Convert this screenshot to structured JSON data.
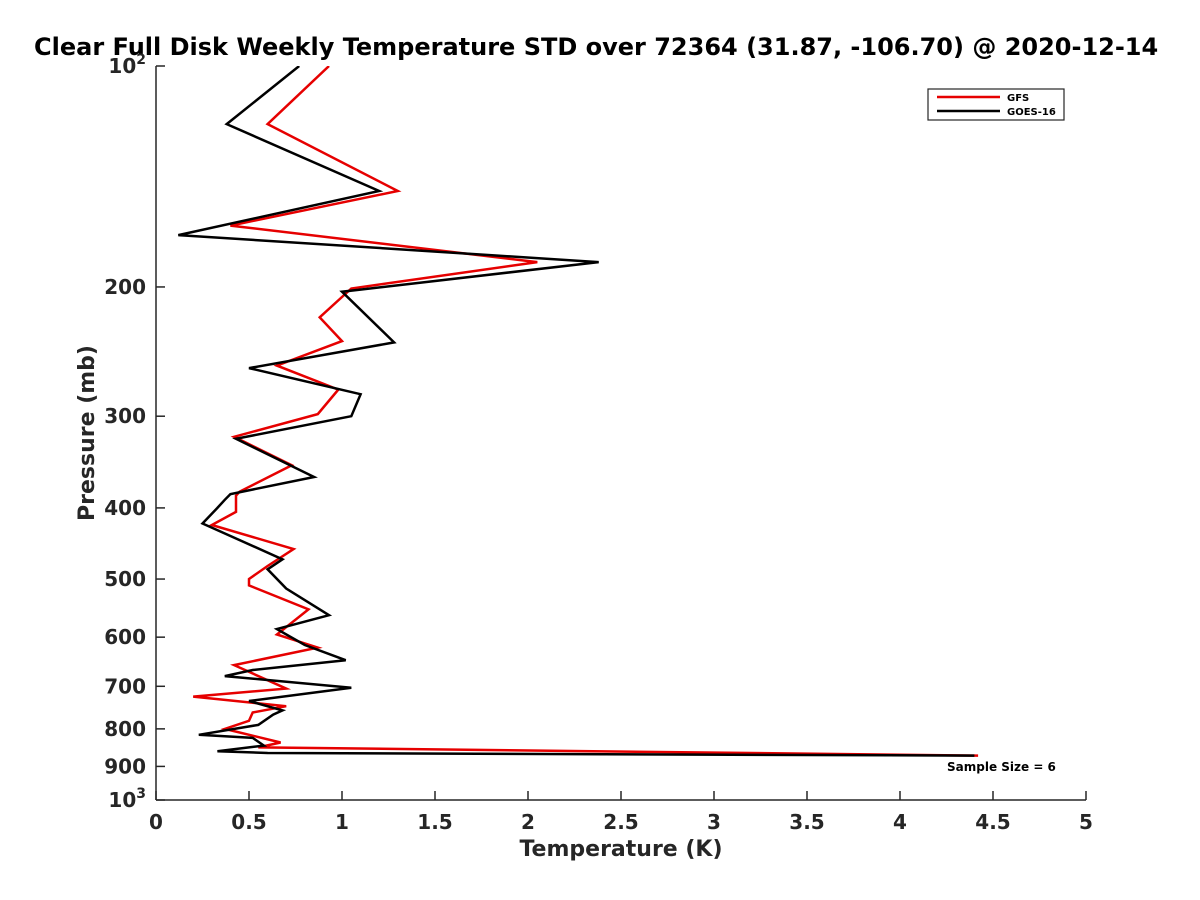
{
  "chart_data": {
    "type": "line",
    "title": "Clear Full Disk Weekly Temperature STD over 72364 (31.87, -106.70) @ 2020-12-14",
    "xlabel": "Temperature (K)",
    "ylabel": "Pressure (mb)",
    "xlim": [
      0,
      5
    ],
    "ylim": [
      100,
      1000
    ],
    "yscale": "log",
    "y_reversed": true,
    "x_ticks": [
      "0",
      "0.5",
      "1",
      "1.5",
      "2",
      "2.5",
      "3",
      "3.5",
      "4",
      "4.5",
      "5"
    ],
    "y_ticks": [
      {
        "value": 100,
        "base": "10",
        "exp": "2"
      },
      {
        "value": 200,
        "label": "200"
      },
      {
        "value": 300,
        "label": "300"
      },
      {
        "value": 400,
        "label": "400"
      },
      {
        "value": 500,
        "label": "500"
      },
      {
        "value": 600,
        "label": "600"
      },
      {
        "value": 700,
        "label": "700"
      },
      {
        "value": 800,
        "label": "800"
      },
      {
        "value": 900,
        "label": "900"
      },
      {
        "value": 1000,
        "base": "10",
        "exp": "3"
      }
    ],
    "legend_position": "top-right",
    "annotation": "Sample Size = 6",
    "series": [
      {
        "name": "GFS",
        "color": "#e60000",
        "x": [
          0.93,
          0.6,
          1.3,
          0.4,
          2.05,
          1.05,
          0.88,
          1.0,
          0.65,
          0.98,
          0.87,
          0.42,
          0.73,
          0.45,
          0.43,
          0.43,
          0.3,
          0.74,
          0.6,
          0.5,
          0.5,
          0.82,
          0.65,
          0.87,
          0.42,
          0.7,
          0.2,
          0.7,
          0.52,
          0.5,
          0.37,
          0.67,
          0.55,
          4.42
        ],
        "y": [
          100,
          120,
          148,
          165,
          185,
          201,
          220,
          237,
          256,
          276,
          298,
          320,
          350,
          380,
          385,
          405,
          422,
          455,
          480,
          500,
          510,
          550,
          595,
          620,
          655,
          705,
          723,
          745,
          760,
          780,
          800,
          835,
          848,
          870
        ]
      },
      {
        "name": "GOES-16",
        "color": "#000000",
        "x": [
          0.77,
          0.38,
          1.2,
          0.12,
          2.38,
          1.0,
          1.28,
          0.5,
          1.1,
          1.05,
          0.43,
          0.85,
          0.4,
          0.37,
          0.33,
          0.25,
          0.68,
          0.6,
          0.7,
          0.93,
          0.65,
          0.8,
          1.02,
          0.52,
          0.37,
          1.05,
          0.5,
          0.68,
          0.63,
          0.55,
          0.23,
          0.52,
          0.58,
          0.33,
          0.6,
          4.4
        ],
        "y": [
          100,
          120,
          148,
          170,
          185,
          203,
          238,
          258,
          280,
          300,
          322,
          363,
          383,
          390,
          400,
          420,
          470,
          485,
          515,
          560,
          585,
          615,
          645,
          665,
          678,
          703,
          733,
          755,
          765,
          790,
          815,
          823,
          843,
          858,
          863,
          870
        ]
      }
    ]
  }
}
